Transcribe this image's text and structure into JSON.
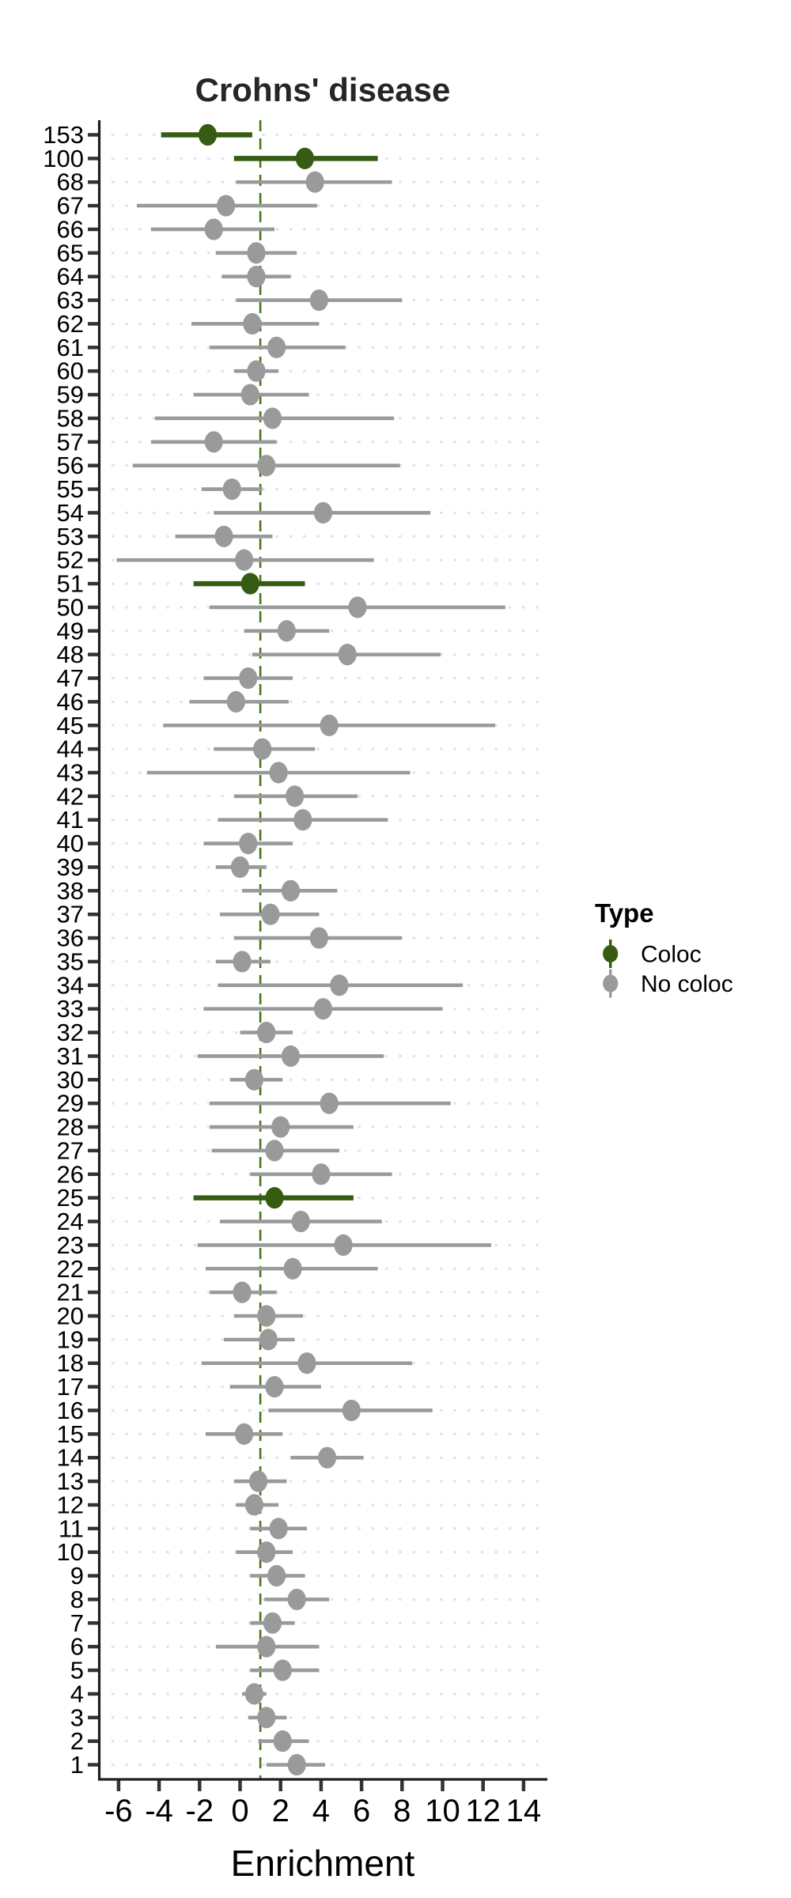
{
  "title": "Crohns' disease",
  "x_axis": {
    "label": "Enrichment",
    "ticks": [
      -6,
      -4,
      -2,
      0,
      2,
      4,
      6,
      8,
      10,
      12,
      14
    ],
    "tick_labels": [
      "-6",
      "-4",
      "-2",
      "0",
      "2",
      "4",
      "6",
      "8",
      "10",
      "12",
      "14"
    ],
    "range": [
      -7,
      15.2
    ]
  },
  "reference_line_x": 1,
  "legend": {
    "title": "Type",
    "items": [
      {
        "label": "Coloc",
        "color": "#355C12"
      },
      {
        "label": "No coloc",
        "color": "#9A9A9A"
      }
    ]
  },
  "colors": {
    "coloc": "#355C12",
    "no_coloc": "#9A9A9A",
    "ref_line": "#47761E",
    "grid_dot": "#E2E2E2",
    "axis_line": "#1F1F1F",
    "tick_mark": "#333333",
    "label_text": "#000000",
    "title_text": "#262626"
  },
  "chart_data": {
    "type": "scatter",
    "subtype": "forest-pointrange",
    "title": "Crohns' disease",
    "xlabel": "Enrichment",
    "ylabel": "",
    "xlim": [
      -7,
      15.2
    ],
    "grid": "dotted-horizontal-per-row",
    "legend_position": "right",
    "reference_line_x": 1,
    "series_key": "Type",
    "rows": [
      {
        "label": "153",
        "lo": -3.9,
        "mid": -1.6,
        "hi": 0.6,
        "type": "Coloc"
      },
      {
        "label": "100",
        "lo": -0.3,
        "mid": 3.2,
        "hi": 6.8,
        "type": "Coloc"
      },
      {
        "label": "68",
        "lo": -0.2,
        "mid": 3.7,
        "hi": 7.5,
        "type": "No coloc"
      },
      {
        "label": "67",
        "lo": -5.1,
        "mid": -0.7,
        "hi": 3.8,
        "type": "No coloc"
      },
      {
        "label": "66",
        "lo": -4.4,
        "mid": -1.3,
        "hi": 1.7,
        "type": "No coloc"
      },
      {
        "label": "65",
        "lo": -1.2,
        "mid": 0.8,
        "hi": 2.8,
        "type": "No coloc"
      },
      {
        "label": "64",
        "lo": -0.9,
        "mid": 0.8,
        "hi": 2.5,
        "type": "No coloc"
      },
      {
        "label": "63",
        "lo": -0.2,
        "mid": 3.9,
        "hi": 8.0,
        "type": "No coloc"
      },
      {
        "label": "62",
        "lo": -2.4,
        "mid": 0.6,
        "hi": 3.9,
        "type": "No coloc"
      },
      {
        "label": "61",
        "lo": -1.5,
        "mid": 1.8,
        "hi": 5.2,
        "type": "No coloc"
      },
      {
        "label": "60",
        "lo": -0.3,
        "mid": 0.8,
        "hi": 1.9,
        "type": "No coloc"
      },
      {
        "label": "59",
        "lo": -2.3,
        "mid": 0.5,
        "hi": 3.4,
        "type": "No coloc"
      },
      {
        "label": "58",
        "lo": -4.2,
        "mid": 1.6,
        "hi": 7.6,
        "type": "No coloc"
      },
      {
        "label": "57",
        "lo": -4.4,
        "mid": -1.3,
        "hi": 1.8,
        "type": "No coloc"
      },
      {
        "label": "56",
        "lo": -5.3,
        "mid": 1.3,
        "hi": 7.9,
        "type": "No coloc"
      },
      {
        "label": "55",
        "lo": -1.9,
        "mid": -0.4,
        "hi": 1.1,
        "type": "No coloc"
      },
      {
        "label": "54",
        "lo": -1.3,
        "mid": 4.1,
        "hi": 9.4,
        "type": "No coloc"
      },
      {
        "label": "53",
        "lo": -3.2,
        "mid": -0.8,
        "hi": 1.6,
        "type": "No coloc"
      },
      {
        "label": "52",
        "lo": -6.1,
        "mid": 0.2,
        "hi": 6.6,
        "type": "No coloc"
      },
      {
        "label": "51",
        "lo": -2.3,
        "mid": 0.5,
        "hi": 3.2,
        "type": "Coloc"
      },
      {
        "label": "50",
        "lo": -1.5,
        "mid": 5.8,
        "hi": 13.1,
        "type": "No coloc"
      },
      {
        "label": "49",
        "lo": 0.2,
        "mid": 2.3,
        "hi": 4.4,
        "type": "No coloc"
      },
      {
        "label": "48",
        "lo": 0.6,
        "mid": 5.3,
        "hi": 9.9,
        "type": "No coloc"
      },
      {
        "label": "47",
        "lo": -1.8,
        "mid": 0.4,
        "hi": 2.6,
        "type": "No coloc"
      },
      {
        "label": "46",
        "lo": -2.5,
        "mid": -0.2,
        "hi": 2.4,
        "type": "No coloc"
      },
      {
        "label": "45",
        "lo": -3.8,
        "mid": 4.4,
        "hi": 12.6,
        "type": "No coloc"
      },
      {
        "label": "44",
        "lo": -1.3,
        "mid": 1.1,
        "hi": 3.7,
        "type": "No coloc"
      },
      {
        "label": "43",
        "lo": -4.6,
        "mid": 1.9,
        "hi": 8.4,
        "type": "No coloc"
      },
      {
        "label": "42",
        "lo": -0.3,
        "mid": 2.7,
        "hi": 5.8,
        "type": "No coloc"
      },
      {
        "label": "41",
        "lo": -1.1,
        "mid": 3.1,
        "hi": 7.3,
        "type": "No coloc"
      },
      {
        "label": "40",
        "lo": -1.8,
        "mid": 0.4,
        "hi": 2.6,
        "type": "No coloc"
      },
      {
        "label": "39",
        "lo": -1.2,
        "mid": 0.0,
        "hi": 1.3,
        "type": "No coloc"
      },
      {
        "label": "38",
        "lo": 0.1,
        "mid": 2.5,
        "hi": 4.8,
        "type": "No coloc"
      },
      {
        "label": "37",
        "lo": -1.0,
        "mid": 1.5,
        "hi": 3.9,
        "type": "No coloc"
      },
      {
        "label": "36",
        "lo": -0.3,
        "mid": 3.9,
        "hi": 8.0,
        "type": "No coloc"
      },
      {
        "label": "35",
        "lo": -1.2,
        "mid": 0.1,
        "hi": 1.5,
        "type": "No coloc"
      },
      {
        "label": "34",
        "lo": -1.1,
        "mid": 4.9,
        "hi": 11.0,
        "type": "No coloc"
      },
      {
        "label": "33",
        "lo": -1.8,
        "mid": 4.1,
        "hi": 10.0,
        "type": "No coloc"
      },
      {
        "label": "32",
        "lo": 0.0,
        "mid": 1.3,
        "hi": 2.6,
        "type": "No coloc"
      },
      {
        "label": "31",
        "lo": -2.1,
        "mid": 2.5,
        "hi": 7.1,
        "type": "No coloc"
      },
      {
        "label": "30",
        "lo": -0.5,
        "mid": 0.7,
        "hi": 2.1,
        "type": "No coloc"
      },
      {
        "label": "29",
        "lo": -1.5,
        "mid": 4.4,
        "hi": 10.4,
        "type": "No coloc"
      },
      {
        "label": "28",
        "lo": -1.5,
        "mid": 2.0,
        "hi": 5.6,
        "type": "No coloc"
      },
      {
        "label": "27",
        "lo": -1.4,
        "mid": 1.7,
        "hi": 4.9,
        "type": "No coloc"
      },
      {
        "label": "26",
        "lo": 0.5,
        "mid": 4.0,
        "hi": 7.5,
        "type": "No coloc"
      },
      {
        "label": "25",
        "lo": -2.3,
        "mid": 1.7,
        "hi": 5.6,
        "type": "Coloc"
      },
      {
        "label": "24",
        "lo": -1.0,
        "mid": 3.0,
        "hi": 7.0,
        "type": "No coloc"
      },
      {
        "label": "23",
        "lo": -2.1,
        "mid": 5.1,
        "hi": 12.4,
        "type": "No coloc"
      },
      {
        "label": "22",
        "lo": -1.7,
        "mid": 2.6,
        "hi": 6.8,
        "type": "No coloc"
      },
      {
        "label": "21",
        "lo": -1.5,
        "mid": 0.1,
        "hi": 1.8,
        "type": "No coloc"
      },
      {
        "label": "20",
        "lo": -0.3,
        "mid": 1.3,
        "hi": 3.1,
        "type": "No coloc"
      },
      {
        "label": "19",
        "lo": -0.8,
        "mid": 1.4,
        "hi": 2.7,
        "type": "No coloc"
      },
      {
        "label": "18",
        "lo": -1.9,
        "mid": 3.3,
        "hi": 8.5,
        "type": "No coloc"
      },
      {
        "label": "17",
        "lo": -0.5,
        "mid": 1.7,
        "hi": 4.0,
        "type": "No coloc"
      },
      {
        "label": "16",
        "lo": 1.4,
        "mid": 5.5,
        "hi": 9.5,
        "type": "No coloc"
      },
      {
        "label": "15",
        "lo": -1.7,
        "mid": 0.2,
        "hi": 2.1,
        "type": "No coloc"
      },
      {
        "label": "14",
        "lo": 2.5,
        "mid": 4.3,
        "hi": 6.1,
        "type": "No coloc"
      },
      {
        "label": "13",
        "lo": -0.3,
        "mid": 0.9,
        "hi": 2.3,
        "type": "No coloc"
      },
      {
        "label": "12",
        "lo": -0.2,
        "mid": 0.7,
        "hi": 1.9,
        "type": "No coloc"
      },
      {
        "label": "11",
        "lo": 0.5,
        "mid": 1.9,
        "hi": 3.3,
        "type": "No coloc"
      },
      {
        "label": "10",
        "lo": -0.2,
        "mid": 1.3,
        "hi": 2.6,
        "type": "No coloc"
      },
      {
        "label": "9",
        "lo": 0.5,
        "mid": 1.8,
        "hi": 3.2,
        "type": "No coloc"
      },
      {
        "label": "8",
        "lo": 1.2,
        "mid": 2.8,
        "hi": 4.4,
        "type": "No coloc"
      },
      {
        "label": "7",
        "lo": 0.5,
        "mid": 1.6,
        "hi": 2.7,
        "type": "No coloc"
      },
      {
        "label": "6",
        "lo": -1.2,
        "mid": 1.3,
        "hi": 3.9,
        "type": "No coloc"
      },
      {
        "label": "5",
        "lo": 0.5,
        "mid": 2.1,
        "hi": 3.9,
        "type": "No coloc"
      },
      {
        "label": "4",
        "lo": 0.1,
        "mid": 0.7,
        "hi": 1.3,
        "type": "No coloc"
      },
      {
        "label": "3",
        "lo": 0.4,
        "mid": 1.3,
        "hi": 2.3,
        "type": "No coloc"
      },
      {
        "label": "2",
        "lo": 0.9,
        "mid": 2.1,
        "hi": 3.4,
        "type": "No coloc"
      },
      {
        "label": "1",
        "lo": 1.3,
        "mid": 2.8,
        "hi": 4.2,
        "type": "No coloc"
      }
    ]
  }
}
